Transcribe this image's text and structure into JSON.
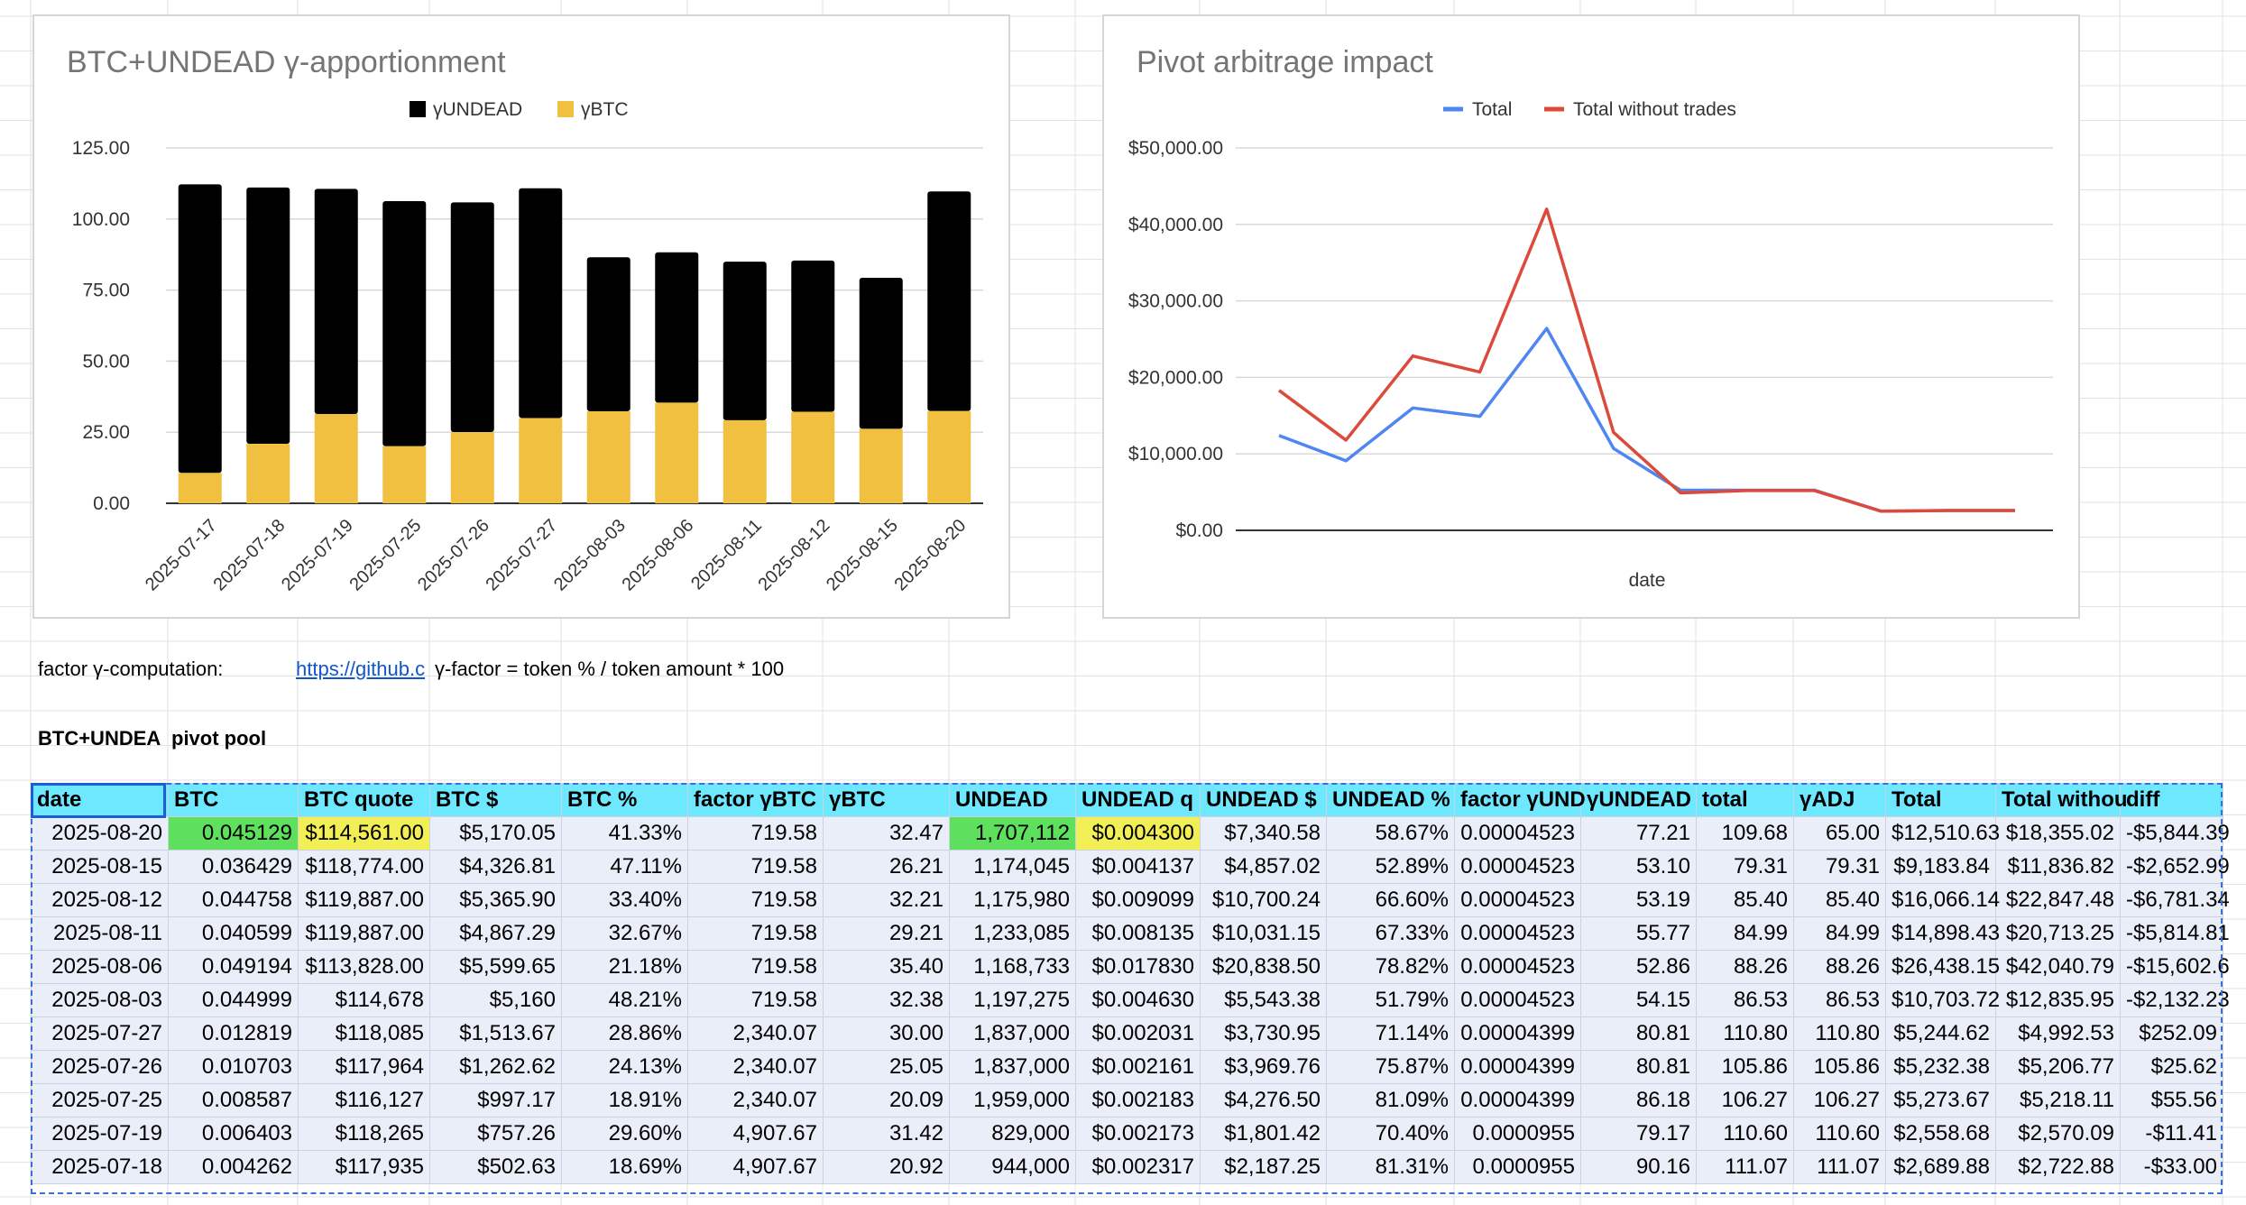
{
  "colors": {
    "bar_undead": "#000000",
    "bar_btc": "#f1c040",
    "line_total": "#4f86f0",
    "line_no_trades": "#db4a3b",
    "header_bg": "#6ee8ff",
    "row_bg": "#e9eef9",
    "highlight_green": "#5ee05e",
    "highlight_yellow": "#f2ee55"
  },
  "chart_data": [
    {
      "type": "bar",
      "stacked": true,
      "title": "BTC+UNDEAD γ-apportionment",
      "legend": [
        "γUNDEAD",
        "γBTC"
      ],
      "categories": [
        "2025-07-17",
        "2025-07-18",
        "2025-07-19",
        "2025-07-25",
        "2025-07-26",
        "2025-07-27",
        "2025-08-03",
        "2025-08-06",
        "2025-08-11",
        "2025-08-12",
        "2025-08-15",
        "2025-08-20"
      ],
      "series": [
        {
          "name": "γBTC",
          "values": [
            10.7,
            20.92,
            31.42,
            20.09,
            25.05,
            30.0,
            32.38,
            35.4,
            29.21,
            32.21,
            26.21,
            32.47
          ]
        },
        {
          "name": "γUNDEAD",
          "values": [
            101.5,
            90.16,
            79.17,
            86.18,
            80.81,
            80.81,
            54.15,
            52.86,
            55.77,
            53.19,
            53.1,
            77.21
          ]
        }
      ],
      "yticks": [
        "0.00",
        "25.00",
        "50.00",
        "75.00",
        "100.00",
        "125.00"
      ],
      "ylim": [
        0,
        125
      ]
    },
    {
      "type": "line",
      "title": "Pivot arbitrage impact",
      "xlabel": "date",
      "legend": [
        "Total",
        "Total without trades"
      ],
      "series": [
        {
          "name": "Total",
          "values": [
            12400,
            9100,
            16000,
            14900,
            26400,
            10700,
            5250,
            5250,
            5250,
            2500,
            2600,
            2600
          ]
        },
        {
          "name": "Total without trades",
          "values": [
            18300,
            11800,
            22800,
            20700,
            42000,
            12800,
            4900,
            5200,
            5200,
            2500,
            2600,
            2600
          ]
        }
      ],
      "yticks": [
        "$0.00",
        "$10,000.00",
        "$20,000.00",
        "$30,000.00",
        "$40,000.00",
        "$50,000.00"
      ],
      "ylim": [
        0,
        50000
      ]
    }
  ],
  "factor": {
    "label": "factor γ-computation:",
    "link_text": "https://github.c",
    "formula": "γ-factor = token % / token amount * 100"
  },
  "pool_label": {
    "name": "BTC+UNDEA",
    "suffix": "pivot pool"
  },
  "table": {
    "headers": [
      "date",
      "BTC",
      "BTC quote",
      "BTC $",
      "BTC %",
      "factor γBTC",
      "γBTC",
      "UNDEAD",
      "UNDEAD q",
      "UNDEAD $",
      "UNDEAD %",
      "factor γUND",
      "γUNDEAD",
      "total",
      "γADJ",
      "Total",
      "Total withou",
      "diff"
    ],
    "rows": [
      [
        "2025-08-20",
        "0.045129",
        "$114,561.00",
        "$5,170.05",
        "41.33%",
        "719.58",
        "32.47",
        "1,707,112",
        "$0.004300",
        "$7,340.58",
        "58.67%",
        "0.00004523",
        "77.21",
        "109.68",
        "65.00",
        "$12,510.63",
        "$18,355.02",
        "-$5,844.39"
      ],
      [
        "2025-08-15",
        "0.036429",
        "$118,774.00",
        "$4,326.81",
        "47.11%",
        "719.58",
        "26.21",
        "1,174,045",
        "$0.004137",
        "$4,857.02",
        "52.89%",
        "0.00004523",
        "53.10",
        "79.31",
        "79.31",
        "$9,183.84",
        "$11,836.82",
        "-$2,652.99"
      ],
      [
        "2025-08-12",
        "0.044758",
        "$119,887.00",
        "$5,365.90",
        "33.40%",
        "719.58",
        "32.21",
        "1,175,980",
        "$0.009099",
        "$10,700.24",
        "66.60%",
        "0.00004523",
        "53.19",
        "85.40",
        "85.40",
        "$16,066.14",
        "$22,847.48",
        "-$6,781.34"
      ],
      [
        "2025-08-11",
        "0.040599",
        "$119,887.00",
        "$4,867.29",
        "32.67%",
        "719.58",
        "29.21",
        "1,233,085",
        "$0.008135",
        "$10,031.15",
        "67.33%",
        "0.00004523",
        "55.77",
        "84.99",
        "84.99",
        "$14,898.43",
        "$20,713.25",
        "-$5,814.81"
      ],
      [
        "2025-08-06",
        "0.049194",
        "$113,828.00",
        "$5,599.65",
        "21.18%",
        "719.58",
        "35.40",
        "1,168,733",
        "$0.017830",
        "$20,838.50",
        "78.82%",
        "0.00004523",
        "52.86",
        "88.26",
        "88.26",
        "$26,438.15",
        "$42,040.79",
        "-$15,602.6"
      ],
      [
        "2025-08-03",
        "0.044999",
        "$114,678",
        "$5,160",
        "48.21%",
        "719.58",
        "32.38",
        "1,197,275",
        "$0.004630",
        "$5,543.38",
        "51.79%",
        "0.00004523",
        "54.15",
        "86.53",
        "86.53",
        "$10,703.72",
        "$12,835.95",
        "-$2,132.23"
      ],
      [
        "2025-07-27",
        "0.012819",
        "$118,085",
        "$1,513.67",
        "28.86%",
        "2,340.07",
        "30.00",
        "1,837,000",
        "$0.002031",
        "$3,730.95",
        "71.14%",
        "0.00004399",
        "80.81",
        "110.80",
        "110.80",
        "$5,244.62",
        "$4,992.53",
        "$252.09"
      ],
      [
        "2025-07-26",
        "0.010703",
        "$117,964",
        "$1,262.62",
        "24.13%",
        "2,340.07",
        "25.05",
        "1,837,000",
        "$0.002161",
        "$3,969.76",
        "75.87%",
        "0.00004399",
        "80.81",
        "105.86",
        "105.86",
        "$5,232.38",
        "$5,206.77",
        "$25.62"
      ],
      [
        "2025-07-25",
        "0.008587",
        "$116,127",
        "$997.17",
        "18.91%",
        "2,340.07",
        "20.09",
        "1,959,000",
        "$0.002183",
        "$4,276.50",
        "81.09%",
        "0.00004399",
        "86.18",
        "106.27",
        "106.27",
        "$5,273.67",
        "$5,218.11",
        "$55.56"
      ],
      [
        "2025-07-19",
        "0.006403",
        "$118,265",
        "$757.26",
        "29.60%",
        "4,907.67",
        "31.42",
        "829,000",
        "$0.002173",
        "$1,801.42",
        "70.40%",
        "0.0000955",
        "79.17",
        "110.60",
        "110.60",
        "$2,558.68",
        "$2,570.09",
        "-$11.41"
      ],
      [
        "2025-07-18",
        "0.004262",
        "$117,935",
        "$502.63",
        "18.69%",
        "4,907.67",
        "20.92",
        "944,000",
        "$0.002317",
        "$2,187.25",
        "81.31%",
        "0.0000955",
        "90.16",
        "111.07",
        "111.07",
        "$2,689.88",
        "$2,722.88",
        "-$33.00"
      ]
    ]
  }
}
